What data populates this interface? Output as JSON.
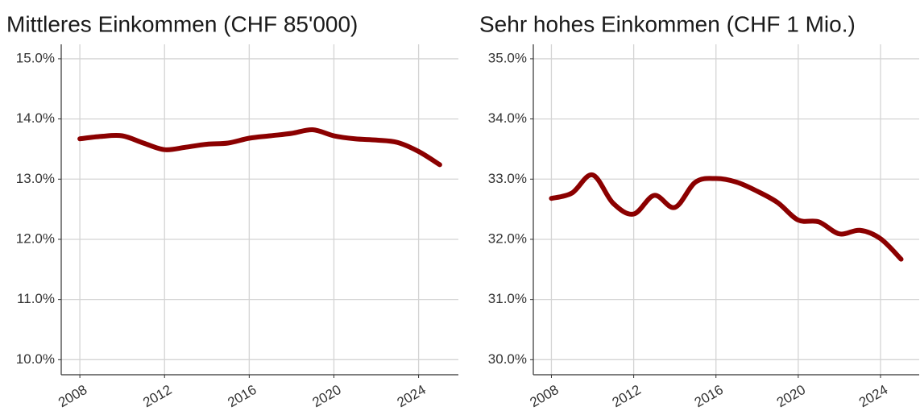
{
  "chart_data": [
    {
      "type": "line",
      "title": "Mittleres Einkommen (CHF 85'000)",
      "x": [
        2008,
        2009,
        2010,
        2011,
        2012,
        2013,
        2014,
        2015,
        2016,
        2017,
        2018,
        2019,
        2020,
        2021,
        2022,
        2023,
        2024,
        2025
      ],
      "series": [
        {
          "color": "#8b0000",
          "values": [
            13.67,
            13.71,
            13.72,
            13.6,
            13.49,
            13.53,
            13.58,
            13.6,
            13.68,
            13.72,
            13.76,
            13.82,
            13.72,
            13.67,
            13.65,
            13.61,
            13.46,
            13.24
          ]
        }
      ],
      "xlim": [
        2007.12,
        2025.88
      ],
      "xticks": [
        2008,
        2012,
        2016,
        2020,
        2024
      ],
      "ylim": [
        9.75,
        15.24
      ],
      "yticks": [
        {
          "value": 10,
          "label": "10.0%"
        },
        {
          "value": 11,
          "label": "11.0%"
        },
        {
          "value": 12,
          "label": "12.0%"
        },
        {
          "value": 13,
          "label": "13.0%"
        },
        {
          "value": 14,
          "label": "14.0%"
        },
        {
          "value": 15,
          "label": "15.0%"
        }
      ],
      "grid": true
    },
    {
      "type": "line",
      "title": "Sehr hohes Einkommen (CHF 1 Mio.)",
      "x": [
        2008,
        2009,
        2010,
        2011,
        2012,
        2013,
        2014,
        2015,
        2016,
        2017,
        2018,
        2019,
        2020,
        2021,
        2022,
        2023,
        2024,
        2025
      ],
      "series": [
        {
          "color": "#8b0000",
          "values": [
            32.68,
            32.77,
            33.07,
            32.6,
            32.42,
            32.73,
            32.53,
            32.95,
            33.01,
            32.95,
            32.8,
            32.61,
            32.32,
            32.29,
            32.09,
            32.15,
            32.01,
            31.67
          ]
        }
      ],
      "xlim": [
        2007.12,
        2025.88
      ],
      "xticks": [
        2008,
        2012,
        2016,
        2020,
        2024
      ],
      "ylim": [
        29.75,
        35.24
      ],
      "yticks": [
        {
          "value": 30,
          "label": "30.0%"
        },
        {
          "value": 31,
          "label": "31.0%"
        },
        {
          "value": 32,
          "label": "32.0%"
        },
        {
          "value": 33,
          "label": "33.0%"
        },
        {
          "value": 34,
          "label": "34.0%"
        },
        {
          "value": 35,
          "label": "35.0%"
        }
      ],
      "grid": true
    }
  ]
}
